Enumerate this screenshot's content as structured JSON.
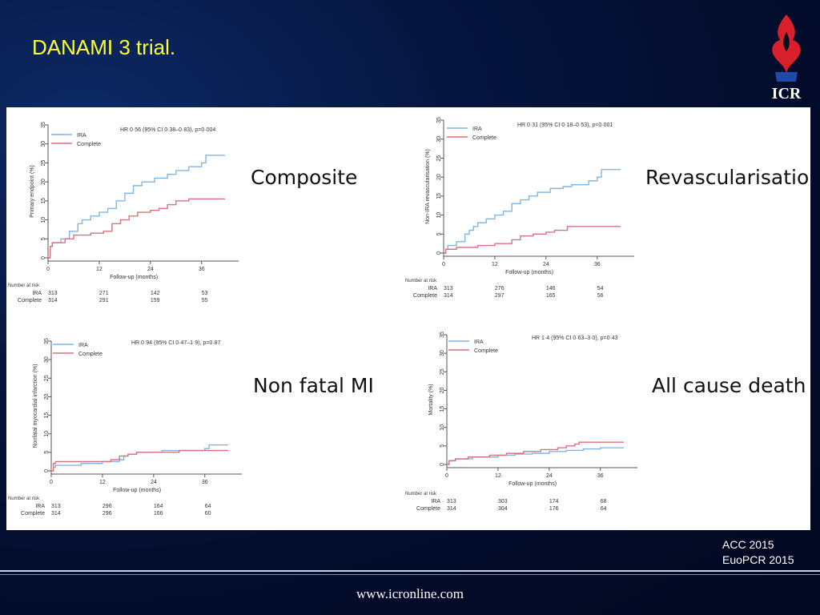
{
  "slide": {
    "title": "DANAMI 3 trial.",
    "logo_text": "ICR",
    "footer_url": "www.icronline.com",
    "conferences": [
      "ACC 2015",
      "EuoPCR 2015"
    ]
  },
  "colors": {
    "ira": "#7fb6e8",
    "complete": "#d9707e",
    "title": "#ffff33",
    "logo_red": "#d8202b",
    "logo_blue": "#1f4aa8"
  },
  "risk_table_header": "Number at risk",
  "chart_data": [
    {
      "type": "line",
      "panel_label": "Composite",
      "hr_text": "HR 0·56 (95% CI 0·38–0·83), p=0·004",
      "ylabel": "Primary endpoint (%)",
      "xlabel": "Follow-up (months)",
      "xlim": [
        0,
        42
      ],
      "ylim": [
        0,
        35
      ],
      "xticks": [
        0,
        12,
        24,
        36
      ],
      "yticks": [
        0,
        5,
        10,
        15,
        20,
        25,
        30,
        35
      ],
      "series": [
        {
          "name": "IRA",
          "color": "#7fb6e8",
          "points": [
            [
              0,
              0
            ],
            [
              0.5,
              3
            ],
            [
              1,
              4
            ],
            [
              3,
              5
            ],
            [
              5,
              7
            ],
            [
              7,
              9
            ],
            [
              8,
              10
            ],
            [
              10,
              11
            ],
            [
              12,
              12
            ],
            [
              14,
              13
            ],
            [
              16,
              15
            ],
            [
              18,
              17
            ],
            [
              20,
              19
            ],
            [
              22,
              20
            ],
            [
              25,
              21
            ],
            [
              28,
              22
            ],
            [
              30,
              23
            ],
            [
              33,
              24
            ],
            [
              36,
              25
            ],
            [
              37,
              27
            ],
            [
              40,
              27
            ],
            [
              45,
              27
            ]
          ]
        },
        {
          "name": "Complete",
          "color": "#d9707e",
          "points": [
            [
              0,
              0
            ],
            [
              0.5,
              3
            ],
            [
              1,
              4
            ],
            [
              4,
              5
            ],
            [
              6,
              6
            ],
            [
              10,
              6.5
            ],
            [
              13,
              7
            ],
            [
              15,
              9
            ],
            [
              17,
              10
            ],
            [
              19,
              11
            ],
            [
              21,
              12
            ],
            [
              24,
              12.5
            ],
            [
              26,
              13
            ],
            [
              28,
              14
            ],
            [
              30,
              15
            ],
            [
              33,
              15.5
            ],
            [
              40,
              15.5
            ],
            [
              45,
              15.5
            ]
          ]
        }
      ],
      "risk_table": {
        "times": [
          0,
          12,
          24,
          36
        ],
        "rows": [
          {
            "label": "IRA",
            "values": [
              "313",
              "271",
              "142",
              "53"
            ]
          },
          {
            "label": "Complete",
            "values": [
              "314",
              "291",
              "159",
              "55"
            ]
          }
        ]
      }
    },
    {
      "type": "line",
      "panel_label": "Revascularisation",
      "hr_text": "HR 0·31 (95% CI 0·18–0·53), p<0·001",
      "ylabel": "Non-IRA revascularisation (%)",
      "xlabel": "Follow-up (months)",
      "xlim": [
        0,
        42
      ],
      "ylim": [
        0,
        35
      ],
      "xticks": [
        0,
        12,
        24,
        36
      ],
      "yticks": [
        0,
        5,
        10,
        15,
        20,
        25,
        30,
        35
      ],
      "series": [
        {
          "name": "IRA",
          "color": "#7fb6e8",
          "points": [
            [
              0,
              0
            ],
            [
              0.5,
              1
            ],
            [
              1,
              2
            ],
            [
              3,
              3
            ],
            [
              5,
              5
            ],
            [
              6,
              6
            ],
            [
              7,
              7
            ],
            [
              8,
              8
            ],
            [
              10,
              9
            ],
            [
              12,
              10
            ],
            [
              14,
              11
            ],
            [
              16,
              13
            ],
            [
              18,
              14
            ],
            [
              20,
              15
            ],
            [
              22,
              16
            ],
            [
              25,
              17
            ],
            [
              28,
              17.5
            ],
            [
              30,
              18
            ],
            [
              34,
              19
            ],
            [
              36,
              20
            ],
            [
              37,
              22
            ],
            [
              40,
              22
            ],
            [
              45,
              22
            ]
          ]
        },
        {
          "name": "Complete",
          "color": "#d9707e",
          "points": [
            [
              0,
              0
            ],
            [
              0.5,
              1
            ],
            [
              3,
              1.5
            ],
            [
              8,
              2
            ],
            [
              12,
              2.5
            ],
            [
              16,
              3.5
            ],
            [
              18,
              4.5
            ],
            [
              21,
              5
            ],
            [
              24,
              5.5
            ],
            [
              26,
              6
            ],
            [
              29,
              7
            ],
            [
              40,
              7
            ],
            [
              45,
              7
            ]
          ]
        }
      ],
      "risk_table": {
        "times": [
          0,
          12,
          24,
          36
        ],
        "rows": [
          {
            "label": "IRA",
            "values": [
              "313",
              "276",
              "146",
              "54"
            ]
          },
          {
            "label": "Complete",
            "values": [
              "314",
              "297",
              "165",
              "56"
            ]
          }
        ]
      }
    },
    {
      "type": "line",
      "panel_label": "Non fatal MI",
      "hr_text": "HR 0·94 (95% CI 0·47–1·9), p=0·87",
      "ylabel": "Nonfatal myocardial infarction (%)",
      "xlabel": "Follow-up (months)",
      "xlim": [
        0,
        42
      ],
      "ylim": [
        0,
        35
      ],
      "xticks": [
        0,
        12,
        24,
        36
      ],
      "yticks": [
        0,
        5,
        10,
        15,
        20,
        25,
        30,
        35
      ],
      "series": [
        {
          "name": "IRA",
          "color": "#7fb6e8",
          "points": [
            [
              0,
              0
            ],
            [
              0.5,
              1
            ],
            [
              1,
              1.5
            ],
            [
              6,
              1.5
            ],
            [
              7,
              2
            ],
            [
              12,
              2.5
            ],
            [
              16,
              3
            ],
            [
              17,
              4
            ],
            [
              18,
              4.5
            ],
            [
              20,
              5
            ],
            [
              24,
              5
            ],
            [
              26,
              5.5
            ],
            [
              32,
              5.5
            ],
            [
              36,
              6
            ],
            [
              37,
              7
            ],
            [
              40,
              7
            ],
            [
              45,
              7
            ]
          ]
        },
        {
          "name": "Complete",
          "color": "#d9707e",
          "points": [
            [
              0,
              0
            ],
            [
              0.5,
              2
            ],
            [
              1,
              2.5
            ],
            [
              12,
              2.5
            ],
            [
              14,
              3
            ],
            [
              16,
              4
            ],
            [
              18,
              4.5
            ],
            [
              20,
              5
            ],
            [
              26,
              5
            ],
            [
              30,
              5.5
            ],
            [
              36,
              5.5
            ],
            [
              40,
              5.5
            ],
            [
              45,
              5.5
            ]
          ]
        }
      ],
      "risk_table": {
        "times": [
          0,
          12,
          24,
          36
        ],
        "rows": [
          {
            "label": "IRA",
            "values": [
              "313",
              "296",
              "164",
              "64"
            ]
          },
          {
            "label": "Complete",
            "values": [
              "314",
              "296",
              "166",
              "60"
            ]
          }
        ]
      }
    },
    {
      "type": "line",
      "panel_label": "All cause death",
      "hr_text": "HR 1·4 (95% CI 0·63–3·0), p=0·43",
      "ylabel": "Mortality (%)",
      "xlabel": "Follow-up (months)",
      "xlim": [
        0,
        42
      ],
      "ylim": [
        0,
        35
      ],
      "xticks": [
        0,
        12,
        24,
        36
      ],
      "yticks": [
        0,
        5,
        10,
        15,
        20,
        25,
        30,
        35
      ],
      "series": [
        {
          "name": "IRA",
          "color": "#7fb6e8",
          "points": [
            [
              0,
              0
            ],
            [
              0.5,
              1
            ],
            [
              2,
              1.5
            ],
            [
              6,
              2
            ],
            [
              12,
              2.5
            ],
            [
              16,
              2.8
            ],
            [
              20,
              3
            ],
            [
              24,
              3.5
            ],
            [
              28,
              3.8
            ],
            [
              32,
              4.2
            ],
            [
              36,
              4.5
            ],
            [
              40,
              4.5
            ],
            [
              45,
              4.5
            ]
          ]
        },
        {
          "name": "Complete",
          "color": "#d9707e",
          "points": [
            [
              0,
              0
            ],
            [
              0.5,
              1
            ],
            [
              2,
              1.5
            ],
            [
              5,
              2
            ],
            [
              10,
              2.5
            ],
            [
              14,
              3
            ],
            [
              18,
              3.5
            ],
            [
              22,
              4
            ],
            [
              26,
              4.5
            ],
            [
              28,
              5
            ],
            [
              30,
              5.5
            ],
            [
              31,
              6
            ],
            [
              40,
              6
            ],
            [
              45,
              6
            ]
          ]
        }
      ],
      "risk_table": {
        "times": [
          0,
          12,
          24,
          36
        ],
        "rows": [
          {
            "label": "IRA",
            "values": [
              "313",
              "303",
              "174",
              "68"
            ]
          },
          {
            "label": "Complete",
            "values": [
              "314",
              "304",
              "176",
              "64"
            ]
          }
        ]
      }
    }
  ]
}
